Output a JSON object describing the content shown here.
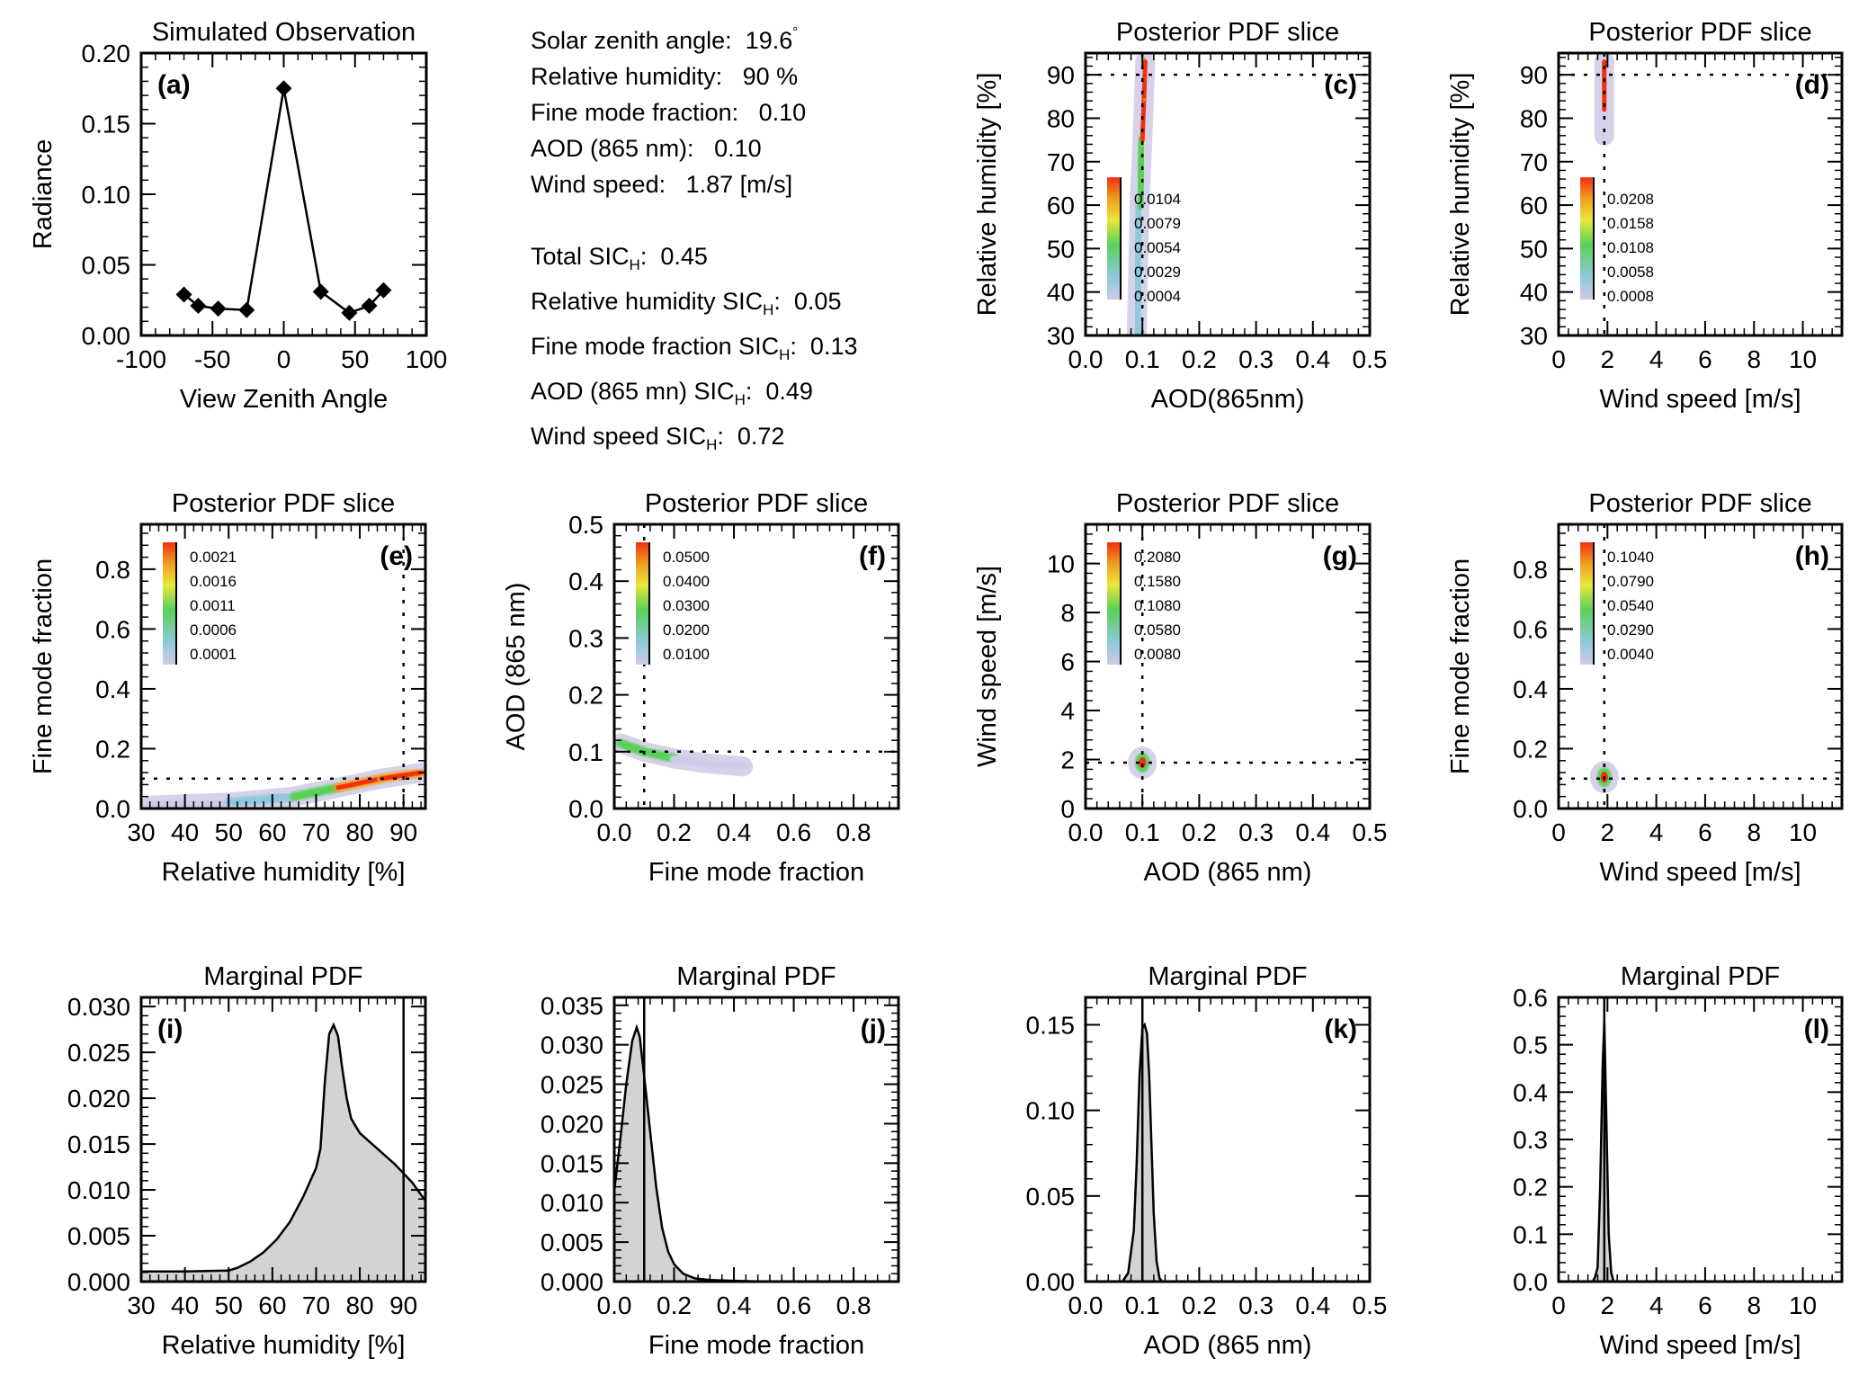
{
  "info_panel": {
    "parameters": [
      {
        "label": "Solar zenith angle:",
        "value": "19.6",
        "suffix_sup": "°"
      },
      {
        "label": "Relative humidity:",
        "value": "90 %"
      },
      {
        "label": "Fine mode fraction:",
        "value": "0.10"
      },
      {
        "label": "AOD (865 nm):",
        "value": "0.10"
      },
      {
        "label": "Wind speed:",
        "value": "1.87 [m/s]"
      }
    ],
    "sic": [
      {
        "label": "Total SIC",
        "sub": "H",
        "value": "0.45"
      },
      {
        "label": "Relative humidity SIC",
        "sub": "H",
        "value": "0.05"
      },
      {
        "label": "Fine mode fraction SIC",
        "sub": "H",
        "value": "0.13"
      },
      {
        "label": "AOD (865 mn) SIC",
        "sub": "H",
        "value": "0.49"
      },
      {
        "label": "Wind speed SIC",
        "sub": "H",
        "value": "0.72"
      }
    ]
  },
  "chart_data": [
    {
      "id": "a",
      "type": "line",
      "title": "Simulated Observation",
      "panel_label": "(a)",
      "xlabel": "View Zenith Angle",
      "ylabel": "Radiance",
      "xlim": [
        -100,
        100
      ],
      "ylim": [
        0,
        0.2
      ],
      "xticks": [
        -100,
        -50,
        0,
        50,
        100
      ],
      "xtick_labels": [
        "-100",
        "-50",
        "0",
        "50",
        "100"
      ],
      "yticks": [
        0,
        0.05,
        0.1,
        0.15,
        0.2
      ],
      "ytick_labels": [
        "0.00",
        "0.05",
        "0.10",
        "0.15",
        "0.20"
      ],
      "x": [
        -70,
        -60,
        -46,
        -26,
        0,
        26,
        46,
        60,
        70
      ],
      "y": [
        0.029,
        0.021,
        0.019,
        0.018,
        0.175,
        0.031,
        0.016,
        0.021,
        0.032
      ],
      "marker": "diamond"
    },
    {
      "id": "c",
      "type": "heatmap",
      "title": "Posterior PDF slice",
      "panel_label": "(c)",
      "xlabel": "AOD(865nm)",
      "ylabel": "Relative humidity [%]",
      "xlim": [
        0,
        0.5
      ],
      "ylim": [
        30,
        95
      ],
      "xticks": [
        0,
        0.1,
        0.2,
        0.3,
        0.4,
        0.5
      ],
      "xtick_labels": [
        "0.0",
        "0.1",
        "0.2",
        "0.3",
        "0.4",
        "0.5"
      ],
      "yticks": [
        30,
        40,
        50,
        60,
        70,
        80,
        90
      ],
      "ytick_labels": [
        "30",
        "40",
        "50",
        "60",
        "70",
        "80",
        "90"
      ],
      "truth": {
        "x": 0.1,
        "y": 90
      },
      "colorbar_labels": [
        "0.0104",
        "0.0079",
        "0.0054",
        "0.0029",
        "0.0004"
      ],
      "colorbar_position": "lower-left",
      "blob": [
        [
          0.09,
          30,
          0.4
        ],
        [
          0.095,
          60,
          0.5
        ],
        [
          0.1,
          75,
          0.8
        ],
        [
          0.103,
          85,
          1.0
        ],
        [
          0.105,
          93,
          1.0
        ]
      ]
    },
    {
      "id": "d",
      "type": "heatmap",
      "title": "Posterior PDF slice",
      "panel_label": "(d)",
      "xlabel": "Wind speed [m/s]",
      "ylabel": "Relative humidity [%]",
      "xlim": [
        0,
        11.6
      ],
      "ylim": [
        30,
        95
      ],
      "xticks": [
        0,
        2,
        4,
        6,
        8,
        10
      ],
      "xtick_labels": [
        "0",
        "2",
        "4",
        "6",
        "8",
        "10"
      ],
      "yticks": [
        30,
        40,
        50,
        60,
        70,
        80,
        90
      ],
      "ytick_labels": [
        "30",
        "40",
        "50",
        "60",
        "70",
        "80",
        "90"
      ],
      "truth": {
        "x": 1.87,
        "y": 90
      },
      "colorbar_labels": [
        "0.0208",
        "0.0158",
        "0.0108",
        "0.0058",
        "0.0008"
      ],
      "colorbar_position": "lower-left",
      "blob": [
        [
          1.87,
          76,
          0.3
        ],
        [
          1.87,
          82,
          0.6
        ],
        [
          1.87,
          88,
          1.0
        ],
        [
          1.87,
          93,
          0.7
        ]
      ]
    },
    {
      "id": "e",
      "type": "heatmap",
      "title": "Posterior PDF slice",
      "panel_label": "(e)",
      "xlabel": "Relative humidity [%]",
      "ylabel": "Fine mode fraction",
      "xlim": [
        30,
        95
      ],
      "ylim": [
        0,
        0.95
      ],
      "xticks": [
        30,
        40,
        50,
        60,
        70,
        80,
        90
      ],
      "xtick_labels": [
        "30",
        "40",
        "50",
        "60",
        "70",
        "80",
        "90"
      ],
      "yticks": [
        0,
        0.2,
        0.4,
        0.6,
        0.8
      ],
      "ytick_labels": [
        "0.0",
        "0.2",
        "0.4",
        "0.6",
        "0.8"
      ],
      "truth": {
        "x": 90,
        "y": 0.1
      },
      "colorbar_labels": [
        "0.0021",
        "0.0016",
        "0.0011",
        "0.0006",
        "0.0001"
      ],
      "colorbar_position": "upper-left",
      "blob": [
        [
          32,
          0.01,
          0.1
        ],
        [
          50,
          0.02,
          0.2
        ],
        [
          65,
          0.04,
          0.5
        ],
        [
          75,
          0.07,
          0.9
        ],
        [
          85,
          0.1,
          1.0
        ],
        [
          94,
          0.12,
          1.0
        ]
      ]
    },
    {
      "id": "f",
      "type": "heatmap",
      "title": "Posterior PDF slice",
      "panel_label": "(f)",
      "xlabel": "Fine mode fraction",
      "ylabel": "AOD (865 nm)",
      "xlim": [
        0,
        0.95
      ],
      "ylim": [
        0,
        0.5
      ],
      "xticks": [
        0,
        0.2,
        0.4,
        0.6,
        0.8
      ],
      "xtick_labels": [
        "0.0",
        "0.2",
        "0.4",
        "0.6",
        "0.8"
      ],
      "yticks": [
        0,
        0.1,
        0.2,
        0.3,
        0.4,
        0.5
      ],
      "ytick_labels": [
        "0.0",
        "0.1",
        "0.2",
        "0.3",
        "0.4",
        "0.5"
      ],
      "truth": {
        "x": 0.1,
        "y": 0.1
      },
      "colorbar_labels": [
        "0.0500",
        "0.0400",
        "0.0300",
        "0.0200",
        "0.0100"
      ],
      "colorbar_position": "upper-left",
      "blob": [
        [
          0.02,
          0.115,
          0.3
        ],
        [
          0.1,
          0.1,
          1.0
        ],
        [
          0.2,
          0.088,
          0.4
        ],
        [
          0.3,
          0.08,
          0.2
        ],
        [
          0.43,
          0.074,
          0.1
        ]
      ]
    },
    {
      "id": "g",
      "type": "heatmap",
      "title": "Posterior PDF slice",
      "panel_label": "(g)",
      "xlabel": "AOD (865 nm)",
      "ylabel": "Wind speed [m/s]",
      "xlim": [
        0,
        0.5
      ],
      "ylim": [
        0,
        11.6
      ],
      "xticks": [
        0,
        0.1,
        0.2,
        0.3,
        0.4,
        0.5
      ],
      "xtick_labels": [
        "0.0",
        "0.1",
        "0.2",
        "0.3",
        "0.4",
        "0.5"
      ],
      "yticks": [
        0,
        2,
        4,
        6,
        8,
        10
      ],
      "ytick_labels": [
        "0",
        "2",
        "4",
        "6",
        "8",
        "10"
      ],
      "truth": {
        "x": 0.1,
        "y": 1.87
      },
      "colorbar_labels": [
        "0.2080",
        "0.1580",
        "0.1080",
        "0.0580",
        "0.0080"
      ],
      "colorbar_position": "upper-left",
      "blob": [
        [
          0.1,
          1.87,
          1.0
        ]
      ]
    },
    {
      "id": "h",
      "type": "heatmap",
      "title": "Posterior PDF slice",
      "panel_label": "(h)",
      "xlabel": "Wind speed [m/s]",
      "ylabel": "Fine mode fraction",
      "xlim": [
        0,
        11.6
      ],
      "ylim": [
        0,
        0.95
      ],
      "xticks": [
        0,
        2,
        4,
        6,
        8,
        10
      ],
      "xtick_labels": [
        "0",
        "2",
        "4",
        "6",
        "8",
        "10"
      ],
      "yticks": [
        0,
        0.2,
        0.4,
        0.6,
        0.8
      ],
      "ytick_labels": [
        "0.0",
        "0.2",
        "0.4",
        "0.6",
        "0.8"
      ],
      "truth": {
        "x": 1.87,
        "y": 0.1
      },
      "colorbar_labels": [
        "0.1040",
        "0.0790",
        "0.0540",
        "0.0290",
        "0.0040"
      ],
      "colorbar_position": "upper-left",
      "blob": [
        [
          1.87,
          0.105,
          1.0
        ]
      ]
    },
    {
      "id": "i",
      "type": "area",
      "title": "Marginal PDF",
      "panel_label": "(i)",
      "xlabel": "Relative humidity [%]",
      "ylabel": "",
      "xlim": [
        30,
        95
      ],
      "ylim": [
        0,
        0.031
      ],
      "xticks": [
        30,
        40,
        50,
        60,
        70,
        80,
        90
      ],
      "xtick_labels": [
        "30",
        "40",
        "50",
        "60",
        "70",
        "80",
        "90"
      ],
      "yticks": [
        0,
        0.005,
        0.01,
        0.015,
        0.02,
        0.025,
        0.03
      ],
      "ytick_labels": [
        "0.000",
        "0.005",
        "0.010",
        "0.015",
        "0.020",
        "0.025",
        "0.030"
      ],
      "truth": 90,
      "panel_label_position": "top-left",
      "x": [
        30,
        40,
        50,
        52,
        55,
        58,
        61,
        64,
        67,
        70,
        71,
        72,
        73,
        74,
        75,
        76,
        77,
        78,
        80,
        84,
        88,
        90,
        92,
        95
      ],
      "y": [
        0.0011,
        0.0011,
        0.0012,
        0.0015,
        0.0022,
        0.0032,
        0.0046,
        0.0065,
        0.0092,
        0.0124,
        0.0145,
        0.0218,
        0.027,
        0.028,
        0.0268,
        0.0232,
        0.02,
        0.0178,
        0.0162,
        0.0145,
        0.0128,
        0.0118,
        0.0108,
        0.0088
      ]
    },
    {
      "id": "j",
      "type": "area",
      "title": "Marginal PDF",
      "panel_label": "(j)",
      "xlabel": "Fine mode fraction",
      "ylabel": "",
      "xlim": [
        0,
        0.95
      ],
      "ylim": [
        0,
        0.036
      ],
      "xticks": [
        0,
        0.2,
        0.4,
        0.6,
        0.8
      ],
      "xtick_labels": [
        "0.0",
        "0.2",
        "0.4",
        "0.6",
        "0.8"
      ],
      "yticks": [
        0,
        0.005,
        0.01,
        0.015,
        0.02,
        0.025,
        0.03,
        0.035
      ],
      "ytick_labels": [
        "0.000",
        "0.005",
        "0.010",
        "0.015",
        "0.020",
        "0.025",
        "0.030",
        "0.035"
      ],
      "truth": 0.1,
      "panel_label_position": "top-right",
      "x": [
        0,
        0.02,
        0.04,
        0.06,
        0.075,
        0.085,
        0.1,
        0.12,
        0.14,
        0.16,
        0.18,
        0.2,
        0.23,
        0.27,
        0.32,
        0.4,
        0.5
      ],
      "y": [
        0.0115,
        0.018,
        0.025,
        0.0305,
        0.0322,
        0.031,
        0.026,
        0.019,
        0.012,
        0.0068,
        0.0038,
        0.0022,
        0.001,
        0.0004,
        0.0002,
        0.0001,
        0.0
      ]
    },
    {
      "id": "k",
      "type": "area",
      "title": "Marginal PDF",
      "panel_label": "(k)",
      "xlabel": "AOD (865 nm)",
      "ylabel": "",
      "xlim": [
        0,
        0.5
      ],
      "ylim": [
        0,
        0.166
      ],
      "xticks": [
        0,
        0.1,
        0.2,
        0.3,
        0.4,
        0.5
      ],
      "xtick_labels": [
        "0.0",
        "0.1",
        "0.2",
        "0.3",
        "0.4",
        "0.5"
      ],
      "yticks": [
        0,
        0.05,
        0.1,
        0.15
      ],
      "ytick_labels": [
        "0.00",
        "0.05",
        "0.10",
        "0.15"
      ],
      "truth": 0.1,
      "panel_label_position": "top-right",
      "x": [
        0.065,
        0.075,
        0.085,
        0.09,
        0.095,
        0.1,
        0.104,
        0.108,
        0.112,
        0.116,
        0.12,
        0.125,
        0.13,
        0.135
      ],
      "y": [
        0.0,
        0.005,
        0.03,
        0.07,
        0.12,
        0.148,
        0.15,
        0.145,
        0.12,
        0.08,
        0.04,
        0.012,
        0.002,
        0.0
      ]
    },
    {
      "id": "l",
      "type": "area",
      "title": "Marginal PDF",
      "panel_label": "(l)",
      "xlabel": "Wind speed [m/s]",
      "ylabel": "",
      "xlim": [
        0,
        11.6
      ],
      "ylim": [
        0,
        0.6
      ],
      "xticks": [
        0,
        2,
        4,
        6,
        8,
        10
      ],
      "xtick_labels": [
        "0",
        "2",
        "4",
        "6",
        "8",
        "10"
      ],
      "yticks": [
        0,
        0.1,
        0.2,
        0.3,
        0.4,
        0.5,
        0.6
      ],
      "ytick_labels": [
        "0.0",
        "0.1",
        "0.2",
        "0.3",
        "0.4",
        "0.5",
        "0.6"
      ],
      "truth": 1.87,
      "panel_label_position": "top-right",
      "x": [
        1.4,
        1.5,
        1.6,
        1.7,
        1.8,
        1.87,
        1.95,
        2.05,
        2.15,
        2.25
      ],
      "y": [
        0.0,
        0.01,
        0.03,
        0.2,
        0.45,
        0.55,
        0.35,
        0.1,
        0.02,
        0.0
      ]
    }
  ]
}
